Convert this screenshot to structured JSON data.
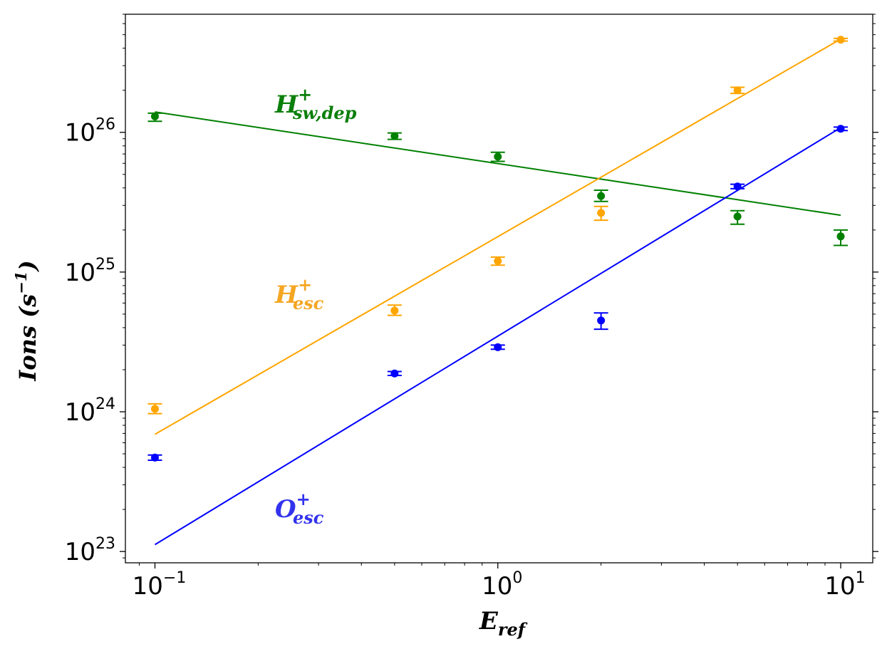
{
  "chart_data": {
    "type": "scatter",
    "title": "",
    "xlabel": {
      "base": "E",
      "sub": "ref"
    },
    "ylabel": {
      "text": "Ions (s",
      "sup": "−1",
      "close": ")"
    },
    "xscale": "log",
    "yscale": "log",
    "xlim": [
      0.082,
      12.4
    ],
    "ylim": [
      8.3e+22,
      7e+26
    ],
    "grid": false,
    "legend": "none",
    "x_ticks": [
      {
        "value": 0.1,
        "base": "10",
        "exp": "−1"
      },
      {
        "value": 1,
        "base": "10",
        "exp": "0"
      },
      {
        "value": 10,
        "base": "10",
        "exp": "1"
      }
    ],
    "y_ticks": [
      {
        "value": 1e+23,
        "base": "10",
        "exp": "23"
      },
      {
        "value": 1e+24,
        "base": "10",
        "exp": "24"
      },
      {
        "value": 1e+25,
        "base": "10",
        "exp": "25"
      },
      {
        "value": 1e+26,
        "base": "10",
        "exp": "26"
      }
    ],
    "x": [
      0.1,
      0.5,
      1,
      2,
      5,
      10
    ],
    "series": [
      {
        "name": "H_sw,dep",
        "color": "#008000",
        "label": {
          "base": "H",
          "sup": "+",
          "sub": "sw,dep"
        },
        "values": [
          1.3e+26,
          9.4e+25,
          6.7e+25,
          3.5e+25,
          2.5e+25,
          1.8e+25
        ],
        "err_low": [
          1.2e+26,
          8.9e+25,
          6.2e+25,
          3.2e+25,
          2.2e+25,
          1.55e+25
        ],
        "err_high": [
          1.37e+26,
          9.9e+25,
          7.2e+25,
          3.85e+25,
          2.75e+25,
          2e+25
        ],
        "fit": [
          [
            0.1,
            1.4e+26
          ],
          [
            10,
            2.55e+25
          ]
        ]
      },
      {
        "name": "H_esc",
        "color": "#FFA500",
        "label": {
          "base": "H",
          "sup": "+",
          "sub": "esc"
        },
        "values": [
          1.05e+24,
          5.3e+24,
          1.2e+25,
          2.65e+25,
          2e+26,
          4.6e+26
        ],
        "err_low": [
          9.7e+23,
          4.9e+24,
          1.12e+25,
          2.35e+25,
          1.9e+26,
          4.5e+26
        ],
        "err_high": [
          1.14e+24,
          5.8e+24,
          1.28e+25,
          2.95e+25,
          2.1e+26,
          4.7e+26
        ],
        "fit": [
          [
            0.1,
            6.9e+23
          ],
          [
            10,
            4.65e+26
          ]
        ]
      },
      {
        "name": "O_esc",
        "color": "#0000FF",
        "label": {
          "base": "O",
          "sup": "+",
          "sub": "esc"
        },
        "values": [
          4.7e+23,
          1.88e+24,
          2.9e+24,
          4.5e+24,
          4.1e+25,
          1.06e+26
        ],
        "err_low": [
          4.5e+23,
          1.82e+24,
          2.8e+24,
          3.9e+24,
          3.95e+25,
          1.03e+26
        ],
        "err_high": [
          4.9e+23,
          1.94e+24,
          3e+24,
          5.1e+24,
          4.25e+25,
          1.09e+26
        ],
        "fit": [
          [
            0.1,
            1.12e+23
          ],
          [
            10,
            1.08e+26
          ]
        ]
      }
    ]
  }
}
